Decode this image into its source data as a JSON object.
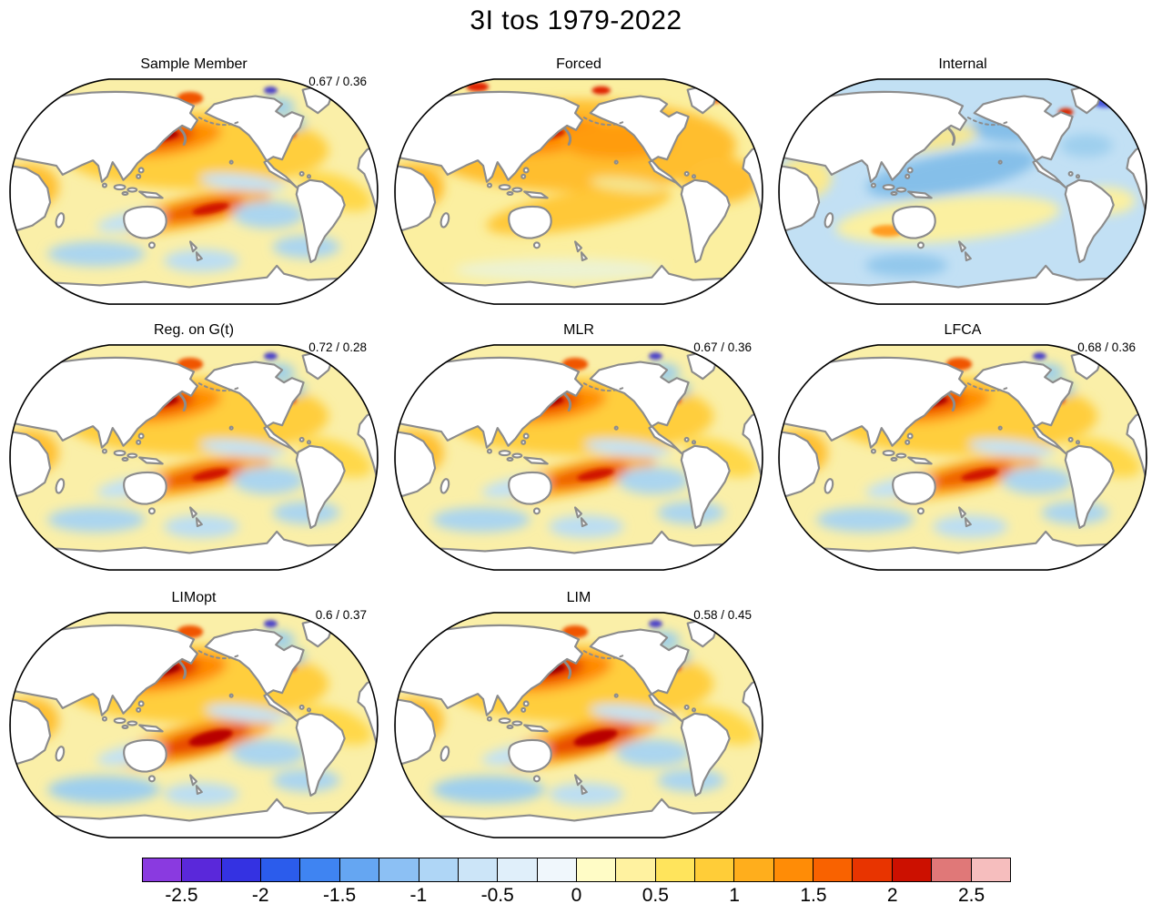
{
  "title": "3I tos 1979-2022",
  "chart_data": {
    "type": "heatmap",
    "subtype": "filled-contour-world-maps",
    "projection": "robinson",
    "title": "3I tos 1979-2022",
    "panels": [
      {
        "label": "Sample Member",
        "annotation": "0.67 / 0.36",
        "pattern": "warm",
        "row": 0,
        "col": 0
      },
      {
        "label": "Forced",
        "annotation": "",
        "pattern": "forced",
        "row": 0,
        "col": 1
      },
      {
        "label": "Internal",
        "annotation": "",
        "pattern": "internal",
        "row": 0,
        "col": 2
      },
      {
        "label": "Reg. on G(t)",
        "annotation": "0.72 / 0.28",
        "pattern": "warm",
        "row": 1,
        "col": 0
      },
      {
        "label": "MLR",
        "annotation": "0.67 / 0.36",
        "pattern": "warm",
        "row": 1,
        "col": 1
      },
      {
        "label": "LFCA",
        "annotation": "0.68 / 0.36",
        "pattern": "warm",
        "row": 1,
        "col": 2
      },
      {
        "label": "LIMopt",
        "annotation": "0.6 / 0.37",
        "pattern": "warm_strong",
        "row": 2,
        "col": 0
      },
      {
        "label": "LIM",
        "annotation": "0.58 / 0.45",
        "pattern": "warm_strong",
        "row": 2,
        "col": 1
      }
    ],
    "colorbar": {
      "min": -2.75,
      "max": 2.75,
      "tick_labels": [
        "-2.5",
        "-2",
        "-1.5",
        "-1",
        "-0.5",
        "0",
        "0.5",
        "1",
        "1.5",
        "2",
        "2.5"
      ],
      "tick_values": [
        -2.5,
        -2,
        -1.5,
        -1,
        -0.5,
        0,
        0.5,
        1,
        1.5,
        2,
        2.5
      ],
      "segment_colors": [
        "#8A3AE0",
        "#5A28DA",
        "#3432E2",
        "#2B5CEC",
        "#3F84F2",
        "#65A6F2",
        "#8CC0F4",
        "#AFD6F6",
        "#CCE5F8",
        "#E0EFFA",
        "#F0F7FC",
        "#FFFCC6",
        "#FFF2A0",
        "#FFE45C",
        "#FFCD38",
        "#FFAE1C",
        "#FF8C06",
        "#F96200",
        "#E83400",
        "#CC1000",
        "#E07878",
        "#F6BEBE"
      ]
    },
    "field_patterns": {
      "warm": {
        "base": "#FAEFA8",
        "soft": [
          [
            0.5,
            0.32,
            0.36,
            0.17,
            0,
            "#FFCE3C"
          ],
          [
            0.42,
            0.27,
            0.155,
            0.075,
            -8,
            "#FF9000"
          ],
          [
            0.415,
            0.262,
            0.09,
            0.042,
            -8,
            "#E63000"
          ],
          [
            0.5,
            0.585,
            0.21,
            0.065,
            -12,
            "#FFAE18"
          ],
          [
            0.52,
            0.578,
            0.115,
            0.04,
            -12,
            "#EE5A00"
          ],
          [
            0.06,
            0.48,
            0.08,
            0.1,
            0,
            "#FFC030"
          ],
          [
            0.88,
            0.5,
            0.1,
            0.07,
            20,
            "#FFD84A"
          ],
          [
            0.63,
            0.46,
            0.115,
            0.035,
            6,
            "#C2E2F4"
          ],
          [
            0.7,
            0.6,
            0.095,
            0.06,
            0,
            "#ABD5EF"
          ],
          [
            0.24,
            0.77,
            0.13,
            0.055,
            0,
            "#ABD5EF"
          ],
          [
            0.52,
            0.8,
            0.1,
            0.05,
            0,
            "#BCDEF2"
          ],
          [
            0.8,
            0.74,
            0.09,
            0.05,
            0,
            "#ABD5EF"
          ],
          [
            0.33,
            0.63,
            0.09,
            0.04,
            -10,
            "#C2E2F4"
          ],
          [
            0.72,
            0.13,
            0.05,
            0.04,
            0,
            "#9CCFEA"
          ],
          [
            0.765,
            0.205,
            0.033,
            0.03,
            0,
            "#79C6E6"
          ]
        ],
        "sharp": [
          [
            0.415,
            0.258,
            0.045,
            0.02,
            -8,
            "#A80000"
          ],
          [
            0.545,
            0.575,
            0.05,
            0.02,
            -12,
            "#D01800"
          ],
          [
            0.755,
            0.252,
            0.018,
            0.016,
            0,
            "#E03010"
          ],
          [
            0.49,
            0.095,
            0.035,
            0.028,
            0,
            "#F05400"
          ],
          [
            0.705,
            0.06,
            0.018,
            0.016,
            0,
            "#4840C8"
          ]
        ]
      },
      "forced": {
        "base": "#FBEFA0",
        "soft": [
          [
            0.5,
            0.3,
            0.42,
            0.2,
            0,
            "#FFBE2E"
          ],
          [
            0.42,
            0.26,
            0.16,
            0.07,
            -8,
            "#FF8A00"
          ],
          [
            0.6,
            0.28,
            0.15,
            0.08,
            0,
            "#FF9C10"
          ],
          [
            0.5,
            0.58,
            0.25,
            0.08,
            -10,
            "#FFC838"
          ],
          [
            0.06,
            0.48,
            0.08,
            0.1,
            0,
            "#FFB828"
          ],
          [
            0.88,
            0.45,
            0.1,
            0.1,
            0,
            "#FFC030"
          ],
          [
            0.63,
            0.47,
            0.1,
            0.03,
            6,
            "#F5E690"
          ],
          [
            0.45,
            0.84,
            0.28,
            0.05,
            0,
            "#EDF3D2"
          ]
        ],
        "sharp": [
          [
            0.415,
            0.252,
            0.05,
            0.022,
            -8,
            "#D42000"
          ],
          [
            0.23,
            0.045,
            0.03,
            0.02,
            0,
            "#E02000"
          ],
          [
            0.56,
            0.06,
            0.025,
            0.018,
            0,
            "#E02000"
          ],
          [
            0.865,
            0.1,
            0.02,
            0.016,
            0,
            "#F05400"
          ]
        ]
      },
      "internal": {
        "base": "#C2E0F4",
        "soft": [
          [
            0.46,
            0.62,
            0.3,
            0.095,
            -5,
            "#FBF0A0"
          ],
          [
            0.47,
            0.42,
            0.23,
            0.085,
            -10,
            "#85BFE9"
          ],
          [
            0.63,
            0.22,
            0.11,
            0.065,
            0,
            "#85BFE9"
          ],
          [
            0.08,
            0.44,
            0.07,
            0.09,
            0,
            "#FBE98C"
          ],
          [
            0.88,
            0.54,
            0.08,
            0.06,
            0,
            "#FBF0A0"
          ],
          [
            0.35,
            0.82,
            0.11,
            0.05,
            0,
            "#93C8EC"
          ],
          [
            0.83,
            0.3,
            0.07,
            0.05,
            0,
            "#9ECFEE"
          ],
          [
            0.42,
            0.27,
            0.12,
            0.05,
            -8,
            "#F7E790"
          ]
        ],
        "sharp": [
          [
            0.775,
            0.155,
            0.02,
            0.018,
            0,
            "#D82800"
          ],
          [
            0.13,
            0.06,
            0.024,
            0.02,
            0,
            "#6838D0"
          ],
          [
            0.88,
            0.11,
            0.035,
            0.025,
            0,
            "#4858E0"
          ],
          [
            0.3,
            0.67,
            0.045,
            0.025,
            0,
            "#FF9C20"
          ]
        ]
      },
      "warm_strong": {
        "base": "#FAEFA8",
        "soft": [
          [
            0.5,
            0.32,
            0.36,
            0.17,
            0,
            "#FFCE3C"
          ],
          [
            0.42,
            0.27,
            0.17,
            0.08,
            -8,
            "#FF8A00"
          ],
          [
            0.415,
            0.262,
            0.1,
            0.048,
            -8,
            "#E02800"
          ],
          [
            0.5,
            0.57,
            0.22,
            0.075,
            -14,
            "#FFA810"
          ],
          [
            0.525,
            0.565,
            0.13,
            0.05,
            -14,
            "#E84800"
          ],
          [
            0.06,
            0.48,
            0.08,
            0.1,
            0,
            "#FFC030"
          ],
          [
            0.88,
            0.5,
            0.1,
            0.07,
            20,
            "#FFD84A"
          ],
          [
            0.64,
            0.45,
            0.11,
            0.035,
            6,
            "#C2E2F4"
          ],
          [
            0.7,
            0.62,
            0.1,
            0.06,
            0,
            "#ABD5EF"
          ],
          [
            0.26,
            0.78,
            0.15,
            0.06,
            0,
            "#9ECFEE"
          ],
          [
            0.52,
            0.8,
            0.1,
            0.05,
            0,
            "#BCDEF2"
          ],
          [
            0.8,
            0.74,
            0.09,
            0.05,
            0,
            "#ABD5EF"
          ],
          [
            0.33,
            0.63,
            0.09,
            0.04,
            -10,
            "#C2E2F4"
          ],
          [
            0.72,
            0.13,
            0.05,
            0.04,
            0,
            "#9CCFEA"
          ],
          [
            0.765,
            0.205,
            0.033,
            0.03,
            0,
            "#79C6E6"
          ]
        ],
        "sharp": [
          [
            0.415,
            0.258,
            0.05,
            0.024,
            -8,
            "#9C0000"
          ],
          [
            0.545,
            0.555,
            0.06,
            0.028,
            -14,
            "#B80000"
          ],
          [
            0.755,
            0.252,
            0.018,
            0.016,
            0,
            "#E03010"
          ],
          [
            0.49,
            0.095,
            0.035,
            0.028,
            0,
            "#F05400"
          ],
          [
            0.705,
            0.06,
            0.018,
            0.016,
            0,
            "#4840C8"
          ]
        ]
      }
    }
  }
}
